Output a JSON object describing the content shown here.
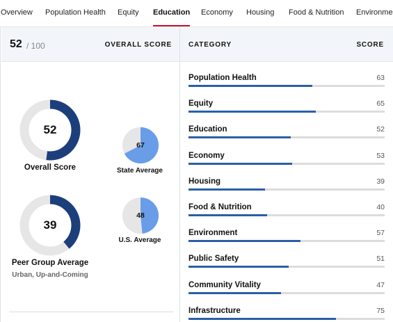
{
  "tabs": [
    {
      "label": "Overview",
      "active": false
    },
    {
      "label": "Population Health",
      "active": false
    },
    {
      "label": "Equity",
      "active": false
    },
    {
      "label": "Education",
      "active": true
    },
    {
      "label": "Economy",
      "active": false
    },
    {
      "label": "Housing",
      "active": false
    },
    {
      "label": "Food & Nutrition",
      "active": false
    },
    {
      "label": "Environmen",
      "active": false
    }
  ],
  "summary": {
    "score": "52",
    "out_of": "/ 100",
    "heading": "OVERALL SCORE"
  },
  "gauges": {
    "overall": {
      "value": 52,
      "label": "Overall Score"
    },
    "state": {
      "value": 67,
      "label": "State Average"
    },
    "us": {
      "value": 48,
      "label": "U.S. Average"
    },
    "peer": {
      "value": 39,
      "label": "Peer Group Average",
      "sublabel": "Urban, Up-and-Coming"
    }
  },
  "table": {
    "col_category": "CATEGORY",
    "col_score": "SCORE",
    "rows": [
      {
        "category": "Population Health",
        "score": 63
      },
      {
        "category": "Equity",
        "score": 65
      },
      {
        "category": "Education",
        "score": 52
      },
      {
        "category": "Economy",
        "score": 53
      },
      {
        "category": "Housing",
        "score": 39
      },
      {
        "category": "Food & Nutrition",
        "score": 40
      },
      {
        "category": "Environment",
        "score": 57
      },
      {
        "category": "Public Safety",
        "score": 51
      },
      {
        "category": "Community Vitality",
        "score": 47
      },
      {
        "category": "Infrastructure",
        "score": 75
      }
    ]
  },
  "colors": {
    "accent_red": "#c8102e",
    "navy": "#1c3f7c",
    "light_blue": "#6a9de8",
    "track_gray": "#e6e6e6",
    "bar_blue": "#2a5fa8"
  }
}
